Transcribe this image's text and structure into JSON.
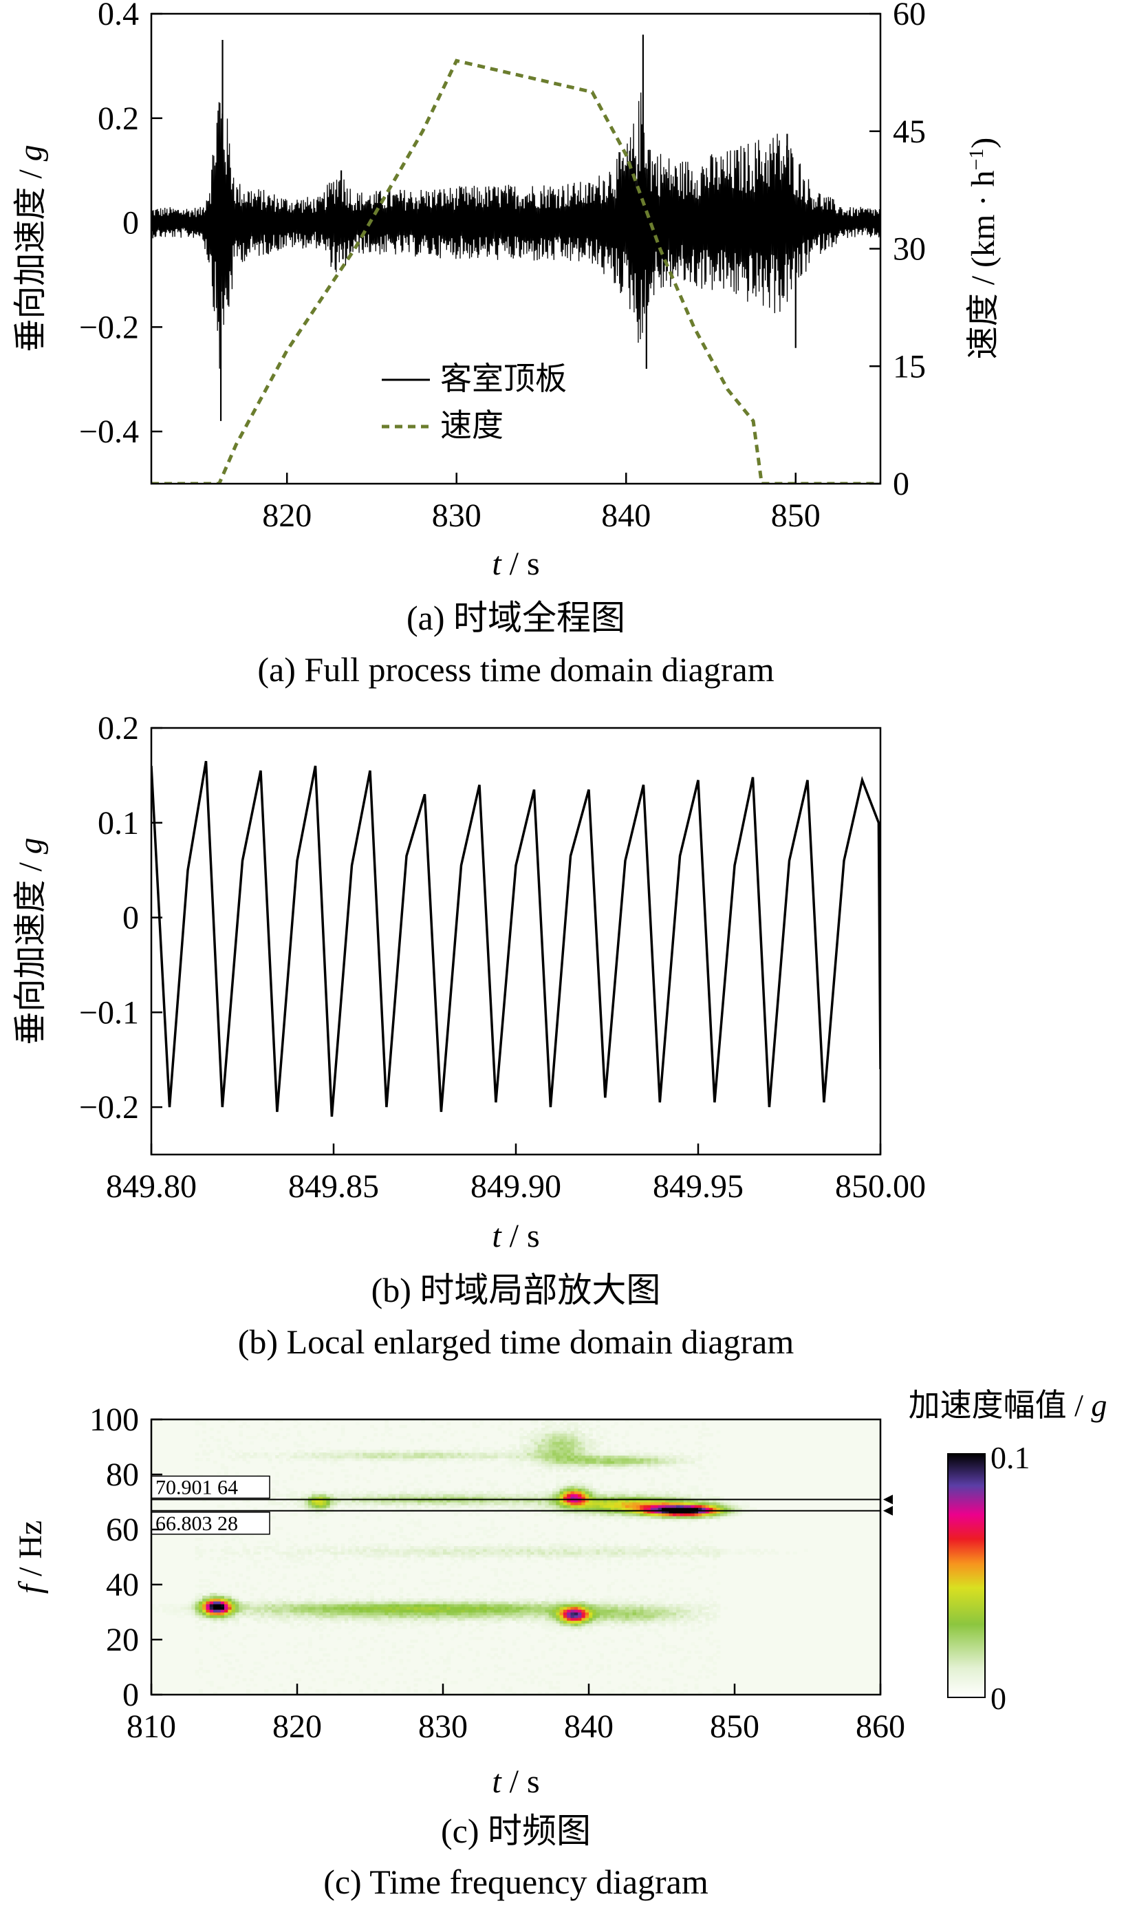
{
  "colors": {
    "accel": "#000000",
    "speed": "#6b7d2e"
  },
  "chart_data": [
    {
      "type": "line",
      "caption_cn": "(a)  时域全程图",
      "caption_en": "(a)  Full process time domain diagram",
      "xlabel_var": "t",
      "xlabel_unit": " / s",
      "ylabel_left_cn": "垂向加速度 / ",
      "ylabel_left_var": "g",
      "ylabel_right_cn": "速度 / (km · h",
      "ylabel_right_sup": "−1",
      "ylabel_right_close": ")",
      "xlim": [
        812,
        855
      ],
      "ylim": [
        -0.5,
        0.4
      ],
      "y2lim": [
        0,
        60
      ],
      "xticks": [
        820,
        830,
        840,
        850
      ],
      "xtick_labels": [
        "820",
        "830",
        "840",
        "850"
      ],
      "yticks": [
        -0.4,
        -0.2,
        0,
        0.2,
        0.4
      ],
      "ytick_labels": [
        "−0.4",
        "−0.2",
        "0",
        "0.2",
        "0.4"
      ],
      "y2ticks": [
        0,
        15,
        30,
        45,
        60
      ],
      "y2tick_labels": [
        "0",
        "15",
        "30",
        "45",
        "60"
      ],
      "legend": {
        "placement": "bottom-center",
        "entries": [
          "客室顶板",
          "速度"
        ]
      },
      "series": [
        {
          "name": "客室顶板",
          "axis": "left",
          "style": "solid",
          "kind": "vibration",
          "envelope": [
            [
              812,
              0.03
            ],
            [
              815,
              0.03
            ],
            [
              815.5,
              0.1
            ],
            [
              816,
              0.3
            ],
            [
              816.5,
              0.2
            ],
            [
              817,
              0.08
            ],
            [
              820,
              0.05
            ],
            [
              822,
              0.05
            ],
            [
              823,
              0.11
            ],
            [
              824,
              0.06
            ],
            [
              830,
              0.07
            ],
            [
              838,
              0.08
            ],
            [
              840,
              0.15
            ],
            [
              840.5,
              0.2
            ],
            [
              841,
              0.28
            ],
            [
              841.5,
              0.15
            ],
            [
              843,
              0.12
            ],
            [
              846,
              0.14
            ],
            [
              849,
              0.18
            ],
            [
              850,
              0.14
            ],
            [
              851,
              0.07
            ],
            [
              853,
              0.03
            ],
            [
              855,
              0.03
            ]
          ],
          "peaks": [
            [
              816.2,
              0.35
            ],
            [
              816.1,
              -0.38
            ],
            [
              841,
              0.36
            ],
            [
              841.2,
              -0.28
            ],
            [
              850,
              -0.24
            ],
            [
              849.5,
              0.17
            ],
            [
              823.2,
              0.1
            ],
            [
              823.3,
              -0.07
            ]
          ]
        },
        {
          "name": "速度",
          "axis": "right",
          "style": "dashed",
          "x": [
            812,
            816,
            817,
            820,
            824,
            828,
            830,
            834,
            838,
            840,
            842,
            844,
            846,
            847.5,
            848,
            855
          ],
          "y": [
            0,
            0,
            5,
            17,
            30,
            45,
            54,
            52,
            50,
            42,
            30,
            20,
            12,
            8,
            0,
            0
          ]
        }
      ]
    },
    {
      "type": "line",
      "caption_cn": "(b)  时域局部放大图",
      "caption_en": "(b)  Local enlarged time domain diagram",
      "xlabel_var": "t",
      "xlabel_unit": " / s",
      "ylabel_cn": "垂向加速度 / ",
      "ylabel_var": "g",
      "xlim": [
        849.8,
        850.0
      ],
      "ylim": [
        -0.25,
        0.2
      ],
      "xticks": [
        849.8,
        849.85,
        849.9,
        849.95,
        850.0
      ],
      "xtick_labels": [
        "849.80",
        "849.85",
        "849.90",
        "849.95",
        "850.00"
      ],
      "yticks": [
        -0.2,
        -0.1,
        0,
        0.1,
        0.2
      ],
      "ytick_labels": [
        "−0.2",
        "−0.1",
        "0",
        "0.1",
        "0.2"
      ],
      "series": [
        {
          "name": "",
          "style": "solid",
          "x": [
            849.8,
            849.805,
            849.81,
            849.815,
            849.8195,
            849.825,
            849.83,
            849.8345,
            849.84,
            849.845,
            849.8495,
            849.855,
            849.86,
            849.8645,
            849.87,
            849.875,
            849.8795,
            849.885,
            849.89,
            849.8945,
            849.9,
            849.905,
            849.9095,
            849.915,
            849.92,
            849.9245,
            849.93,
            849.935,
            849.9395,
            849.945,
            849.95,
            849.9545,
            849.96,
            849.965,
            849.9695,
            849.975,
            849.98,
            849.9845,
            849.99,
            849.995,
            849.9995,
            850.0
          ],
          "y": [
            0.16,
            -0.2,
            0.05,
            0.165,
            -0.2,
            0.06,
            0.155,
            -0.205,
            0.06,
            0.16,
            -0.21,
            0.055,
            0.155,
            -0.2,
            0.065,
            0.13,
            -0.205,
            0.055,
            0.14,
            -0.195,
            0.055,
            0.135,
            -0.2,
            0.065,
            0.135,
            -0.19,
            0.06,
            0.14,
            -0.195,
            0.065,
            0.145,
            -0.195,
            0.055,
            0.148,
            -0.2,
            0.06,
            0.145,
            -0.195,
            0.06,
            0.145,
            0.1,
            -0.16
          ]
        }
      ]
    },
    {
      "type": "heatmap",
      "caption_cn": "(c)  时频图",
      "caption_en": "(c)  Time frequency diagram",
      "xlabel_var": "t",
      "xlabel_unit": " / s",
      "ylabel_var": "f",
      "ylabel_unit": " / Hz",
      "xlim": [
        810,
        860
      ],
      "ylim": [
        0,
        100
      ],
      "xticks": [
        810,
        820,
        830,
        840,
        850,
        860
      ],
      "xtick_labels": [
        "810",
        "820",
        "830",
        "840",
        "850",
        "860"
      ],
      "yticks": [
        0,
        20,
        40,
        60,
        80,
        100
      ],
      "yticks_labels": [
        "0",
        "20",
        "40",
        "60",
        "80",
        "100"
      ],
      "colorbar": {
        "title_cn": "加速度幅值 / ",
        "title_var": "g",
        "min_label": "0",
        "max_label": "0.1",
        "min": 0,
        "max": 0.1
      },
      "markers": [
        {
          "freq": 70.90164,
          "label": "70.901 64"
        },
        {
          "freq": 66.80328,
          "label": "66.803 28"
        }
      ],
      "hotspots": [
        {
          "t": 814.5,
          "f": 32,
          "dt": 1.0,
          "df": 3,
          "amp": 0.1
        },
        {
          "t": 839,
          "f": 29,
          "dt": 1.0,
          "df": 3,
          "amp": 0.075
        },
        {
          "t": 839,
          "f": 72,
          "dt": 1.0,
          "df": 3,
          "amp": 0.065
        },
        {
          "t": 846.5,
          "f": 67,
          "dt": 2.5,
          "df": 2,
          "amp": 0.1
        },
        {
          "t": 843,
          "f": 69,
          "dt": 4.5,
          "df": 3,
          "amp": 0.045
        },
        {
          "t": 821.5,
          "f": 70,
          "dt": 0.8,
          "df": 2.5,
          "amp": 0.04
        },
        {
          "t": 830,
          "f": 71,
          "dt": 8,
          "df": 2,
          "amp": 0.02
        },
        {
          "t": 842,
          "f": 85,
          "dt": 4,
          "df": 2,
          "amp": 0.022
        },
        {
          "t": 828,
          "f": 87,
          "dt": 9,
          "df": 1.5,
          "amp": 0.014
        },
        {
          "t": 829,
          "f": 30,
          "dt": 12,
          "df": 3,
          "amp": 0.02
        },
        {
          "t": 828,
          "f": 32,
          "dt": 13,
          "df": 2,
          "amp": 0.016
        },
        {
          "t": 843,
          "f": 29,
          "dt": 4,
          "df": 3,
          "amp": 0.016
        },
        {
          "t": 836,
          "f": 52,
          "dt": 16,
          "df": 2,
          "amp": 0.01
        },
        {
          "t": 838,
          "f": 90,
          "dt": 2,
          "df": 6,
          "amp": 0.02
        }
      ]
    }
  ]
}
